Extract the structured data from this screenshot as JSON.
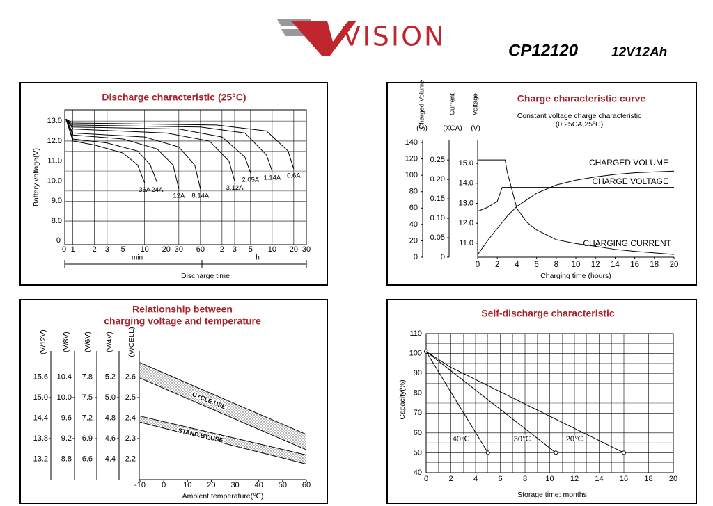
{
  "header": {
    "brand": "VISION",
    "model": "CP12120",
    "rating": "12V12Ah"
  },
  "chart_data": [
    {
      "type": "line",
      "title": "Discharge characteristic (25°C)",
      "ylabel": "Battery voltage(V)",
      "xlabel": "Discharge time",
      "xscale": "log",
      "origin_label": "0",
      "range_labels": [
        "min",
        "h"
      ],
      "xlim": [
        0.77,
        1800
      ],
      "xticks": [
        1,
        2,
        3,
        5,
        10,
        20,
        30,
        60,
        {
          "value": 120,
          "label": "2"
        },
        {
          "value": 180,
          "label": "3"
        },
        {
          "value": 300,
          "label": "5"
        },
        {
          "value": 600,
          "label": "10"
        },
        {
          "value": 1200,
          "label": "20"
        },
        {
          "value": 1800,
          "label": "30"
        }
      ],
      "ylim": [
        6.82,
        13.56
      ],
      "yticks": [
        {
          "value": 8,
          "label": "8.0"
        },
        {
          "value": 9,
          "label": "9.0"
        },
        {
          "value": 10,
          "label": "10.0"
        },
        {
          "value": 11,
          "label": "11.0"
        },
        {
          "value": 12,
          "label": "12.0"
        },
        {
          "value": 13,
          "label": "13.0"
        }
      ],
      "grid": true,
      "grid_minor": true,
      "color": "#000000",
      "series": [
        {
          "name": "36A",
          "x": [
            0.8,
            1,
            2,
            5,
            8,
            10
          ],
          "values": [
            13.1,
            12.0,
            11.8,
            11.4,
            10.8,
            9.9
          ]
        },
        {
          "name": "24A",
          "x": [
            0.8,
            1,
            3,
            8,
            12,
            15
          ],
          "values": [
            13.1,
            12.1,
            11.9,
            11.5,
            10.8,
            9.9
          ]
        },
        {
          "name": "12A",
          "x": [
            0.8,
            1,
            5,
            15,
            25,
            30
          ],
          "values": [
            13.1,
            12.3,
            12.1,
            11.6,
            10.8,
            9.6
          ]
        },
        {
          "name": "8.14A",
          "x": [
            0.8,
            1,
            10,
            30,
            50,
            60
          ],
          "values": [
            13.1,
            12.4,
            12.2,
            11.7,
            10.8,
            9.6
          ]
        },
        {
          "name": "3.12A",
          "x": [
            0.8,
            1,
            20,
            80,
            150,
            180
          ],
          "values": [
            13.1,
            12.6,
            12.4,
            12.0,
            11.0,
            10.0
          ]
        },
        {
          "name": "2.05A",
          "x": [
            0.8,
            1,
            30,
            120,
            250,
            300
          ],
          "values": [
            13.1,
            12.7,
            12.6,
            12.2,
            11.2,
            10.4
          ]
        },
        {
          "name": "1.14A",
          "x": [
            0.8,
            1,
            60,
            250,
            500,
            600
          ],
          "values": [
            13.1,
            12.8,
            12.7,
            12.4,
            11.3,
            10.5
          ]
        },
        {
          "name": "0.6A",
          "x": [
            0.8,
            1,
            100,
            500,
            1000,
            1200
          ],
          "values": [
            13.1,
            12.9,
            12.8,
            12.5,
            11.5,
            10.6
          ]
        }
      ]
    },
    {
      "type": "line",
      "title": "Charge characteristic curve",
      "subtitle": [
        "Constant voltage charge characteristic",
        "(0.25CA,25°C)"
      ],
      "xlabel": "Charging time (hours)",
      "xlim": [
        0,
        20
      ],
      "xticks": [
        0,
        2,
        4,
        6,
        8,
        10,
        12,
        14,
        16,
        18,
        20
      ],
      "ylabel": "Charged Volume",
      "ylabel_unit": "(%)",
      "ylim": [
        0,
        140
      ],
      "yticks": [
        0,
        20,
        40,
        60,
        80,
        100,
        120,
        140
      ],
      "y2label": "Current",
      "y2label_unit": "(XCA)",
      "y2lim": [
        0,
        0.295
      ],
      "y2ticks": [
        0,
        0.05,
        {
          "value": 0.1,
          "label": "0.10"
        },
        0.15,
        {
          "value": 0.2,
          "label": "0.20"
        },
        0.25
      ],
      "y3label": "Voltage",
      "y3label_unit": "(V)",
      "y3lim": [
        10.3,
        16.05
      ],
      "y3ticks": [
        {
          "value": 11,
          "label": "11.0"
        },
        {
          "value": 12,
          "label": "12.0"
        },
        {
          "value": 13,
          "label": "13.0"
        },
        {
          "value": 14,
          "label": "14.0"
        },
        {
          "value": 15,
          "label": "15.0"
        }
      ],
      "color": "#000000",
      "series": [
        {
          "name": "CHARGED VOLUME",
          "axis": "y",
          "x": [
            0,
            1,
            2,
            3,
            4,
            6,
            8,
            10,
            12,
            14,
            16,
            18,
            20
          ],
          "values": [
            3,
            20,
            35,
            50,
            62,
            78,
            88,
            94,
            98,
            101,
            103,
            104,
            105
          ]
        },
        {
          "name": "CHARGE VOLTAGE",
          "axis": "y3",
          "x": [
            0,
            1,
            2,
            2.5,
            20
          ],
          "values": [
            12.6,
            12.8,
            13.1,
            13.8,
            13.8
          ]
        },
        {
          "name": "CHARGING CURRENT",
          "axis": "y2",
          "x": [
            0,
            2.8,
            3,
            4,
            5,
            6,
            8,
            10,
            12,
            14,
            16,
            18,
            20
          ],
          "values": [
            0.25,
            0.25,
            0.22,
            0.125,
            0.09,
            0.07,
            0.045,
            0.035,
            0.028,
            0.02,
            0.015,
            0.011,
            0.007
          ]
        }
      ]
    },
    {
      "type": "band",
      "title": [
        "Relationship between",
        "charging voltage and temperature"
      ],
      "xlabel": "Ambient temperature(℃)",
      "xlim": [
        -10,
        60
      ],
      "xticks": [
        -10,
        0,
        10,
        20,
        30,
        40,
        50,
        60
      ],
      "ylabel": "(V/CELL)",
      "ylim": [
        2.1,
        2.7
      ],
      "yticks": [
        2.2,
        2.3,
        2.4,
        2.5,
        2.6
      ],
      "other_axes": [
        {
          "label": "(V/12V)",
          "ylim": [
            12.6,
            16.2
          ],
          "yticks": [
            13.2,
            13.8,
            14.4,
            {
              "value": 15,
              "label": "15.0"
            },
            15.6
          ]
        },
        {
          "label": "(V/8V)",
          "ylim": [
            8.4,
            10.8
          ],
          "yticks": [
            8.8,
            9.2,
            9.6,
            {
              "value": 10,
              "label": "10.0"
            },
            10.4
          ]
        },
        {
          "label": "(V/6V)",
          "ylim": [
            6.3,
            8.1
          ],
          "yticks": [
            6.6,
            6.9,
            7.2,
            7.5,
            7.8
          ]
        },
        {
          "label": "(V/4V)",
          "ylim": [
            4.2,
            5.4
          ],
          "yticks": [
            4.4,
            4.6,
            4.8,
            {
              "value": 5,
              "label": "5.0"
            },
            5.2
          ]
        }
      ],
      "color": "#000000",
      "series": [
        {
          "name": "CYCLE USE",
          "x": [
            -10,
            60
          ],
          "upper": [
            2.67,
            2.32
          ],
          "lower": [
            2.595,
            2.245
          ]
        },
        {
          "name": "STAND BY USE",
          "x": [
            -10,
            60
          ],
          "upper": [
            2.41,
            2.22
          ],
          "lower": [
            2.38,
            2.176
          ]
        }
      ]
    },
    {
      "type": "line",
      "title": "Self-discharge characteristic",
      "ylabel": "Capacity(%)",
      "xlabel": "Storage time: months",
      "xlim": [
        0,
        20
      ],
      "xticks": [
        0,
        2,
        4,
        6,
        8,
        10,
        12,
        14,
        16,
        18,
        20
      ],
      "ylim": [
        40,
        110
      ],
      "yticks": [
        40,
        50,
        60,
        70,
        80,
        90,
        100,
        110
      ],
      "grid": true,
      "grid_minor": true,
      "color": "#000000",
      "series": [
        {
          "name": "40℃",
          "x": [
            0,
            5
          ],
          "values": [
            101,
            50
          ]
        },
        {
          "name": "30℃",
          "x": [
            0,
            10.5
          ],
          "values": [
            101,
            50
          ]
        },
        {
          "name": "20℃",
          "x": [
            0,
            2,
            16
          ],
          "values": [
            101,
            93,
            50
          ]
        }
      ]
    }
  ]
}
